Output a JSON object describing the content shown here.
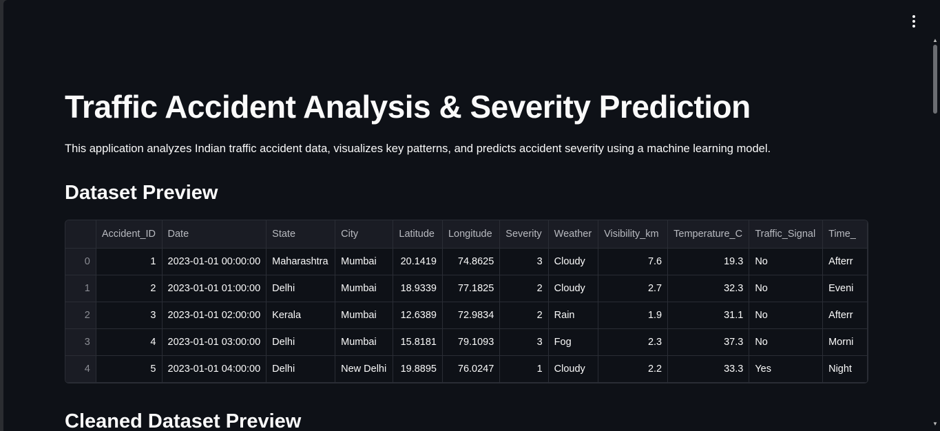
{
  "title": "Traffic Accident Analysis & Severity Prediction",
  "description": "This application analyzes Indian traffic accident data, visualizes key patterns, and predicts accident severity using a machine learning model.",
  "dataset_preview": {
    "heading": "Dataset Preview",
    "columns": [
      "",
      "Accident_ID",
      "Date",
      "State",
      "City",
      "Latitude",
      "Longitude",
      "Severity",
      "Weather",
      "Visibility_km",
      "Temperature_C",
      "Traffic_Signal",
      "Time_"
    ],
    "rows": [
      [
        "0",
        "1",
        "2023-01-01 00:00:00",
        "Maharashtra",
        "Mumbai",
        "20.1419",
        "74.8625",
        "3",
        "Cloudy",
        "7.6",
        "19.3",
        "No",
        "Afterr"
      ],
      [
        "1",
        "2",
        "2023-01-01 01:00:00",
        "Delhi",
        "Mumbai",
        "18.9339",
        "77.1825",
        "2",
        "Cloudy",
        "2.7",
        "32.3",
        "No",
        "Eveni"
      ],
      [
        "2",
        "3",
        "2023-01-01 02:00:00",
        "Kerala",
        "Mumbai",
        "12.6389",
        "72.9834",
        "2",
        "Rain",
        "1.9",
        "31.1",
        "No",
        "Afterr"
      ],
      [
        "3",
        "4",
        "2023-01-01 03:00:00",
        "Delhi",
        "Mumbai",
        "15.8181",
        "79.1093",
        "3",
        "Fog",
        "2.3",
        "37.3",
        "No",
        "Morni"
      ],
      [
        "4",
        "5",
        "2023-01-01 04:00:00",
        "Delhi",
        "New Delhi",
        "19.8895",
        "76.0247",
        "1",
        "Cloudy",
        "2.2",
        "33.3",
        "Yes",
        "Night"
      ]
    ]
  },
  "cleaned_heading": "Cleaned Dataset Preview",
  "colors": {
    "background": "#0e1117",
    "text": "#fafafa",
    "header_bg": "#1a1c24",
    "grid": "#2a2d35"
  },
  "icons": {
    "menu": "kebab-menu-icon"
  }
}
